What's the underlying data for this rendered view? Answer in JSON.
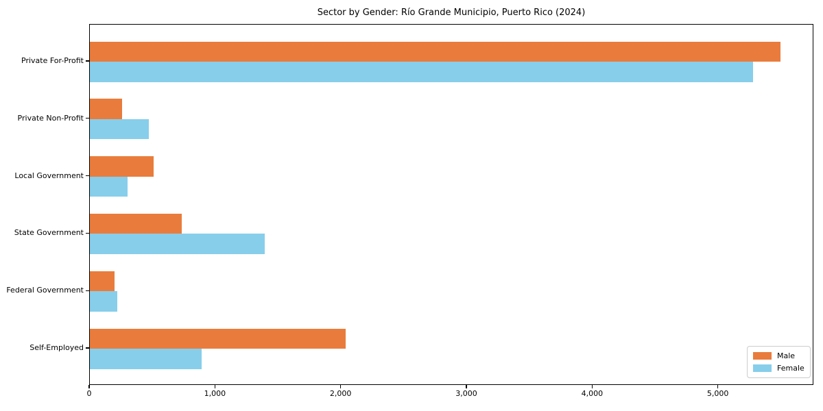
{
  "title": "Sector by Gender: Río Grande Municipio, Puerto Rico (2024)",
  "colors": {
    "male": "#E97C3C",
    "female": "#87CEEB",
    "background": "#ffffff",
    "spine": "#000000",
    "legend_border": "#cccccc"
  },
  "legend": {
    "position": "lower right",
    "items": [
      {
        "label": "Male",
        "color": "#E97C3C"
      },
      {
        "label": "Female",
        "color": "#87CEEB"
      }
    ]
  },
  "chart_data": {
    "type": "bar",
    "orientation": "horizontal",
    "title": "Sector by Gender: Río Grande Municipio, Puerto Rico (2024)",
    "xlabel": "",
    "ylabel": "",
    "categories": [
      "Private For-Profit",
      "Private Non-Profit",
      "Local Government",
      "State Government",
      "Federal Government",
      "Self-Employed"
    ],
    "series": [
      {
        "name": "Male",
        "color": "#E97C3C",
        "values": [
          5490,
          255,
          505,
          730,
          195,
          2035
        ]
      },
      {
        "name": "Female",
        "color": "#87CEEB",
        "values": [
          5275,
          470,
          300,
          1390,
          220,
          890
        ]
      }
    ],
    "xlim": [
      0,
      5760
    ],
    "xticks": [
      0,
      1000,
      2000,
      3000,
      4000,
      5000
    ],
    "xtick_labels": [
      "0",
      "1,000",
      "2,000",
      "3,000",
      "4,000",
      "5,000"
    ],
    "grid": false,
    "legend_position": "lower right"
  }
}
